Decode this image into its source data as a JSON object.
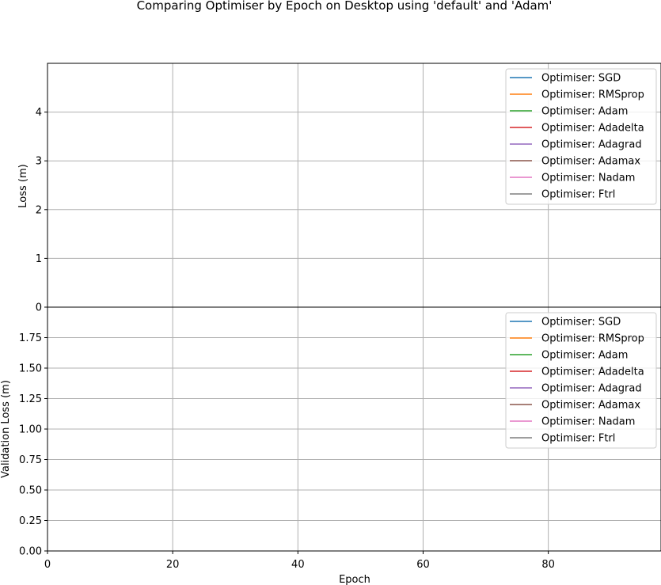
{
  "chart_data": {
    "type": "line",
    "title": "Comparing Optimiser by Epoch on Desktop using 'default' and 'Adam'",
    "xlabel": "Epoch",
    "xlim": [
      0,
      98
    ],
    "xticks": [
      0,
      20,
      40,
      60,
      80
    ],
    "grid": true,
    "legend_position": "top-right",
    "series_names": [
      "Optimiser: SGD",
      "Optimiser: RMSprop",
      "Optimiser: Adam",
      "Optimiser: Adadelta",
      "Optimiser: Adagrad",
      "Optimiser: Adamax",
      "Optimiser: Nadam",
      "Optimiser: Ftrl"
    ],
    "series_colors": [
      "#1f77b4",
      "#ff7f0e",
      "#2ca02c",
      "#d62728",
      "#9467bd",
      "#8c564b",
      "#e377c2",
      "#7f7f7f"
    ],
    "panels": [
      {
        "ylabel": "Loss (m)",
        "ylim": [
          0,
          5
        ],
        "yticks": [
          "0",
          "1",
          "2",
          "3",
          "4"
        ],
        "ytick_values": [
          0,
          1,
          2,
          3,
          4
        ],
        "series": [
          {
            "name": "Optimiser: SGD",
            "values": []
          },
          {
            "name": "Optimiser: RMSprop",
            "values": []
          },
          {
            "name": "Optimiser: Adam",
            "values": []
          },
          {
            "name": "Optimiser: Adadelta",
            "values": []
          },
          {
            "name": "Optimiser: Adagrad",
            "values": []
          },
          {
            "name": "Optimiser: Adamax",
            "values": []
          },
          {
            "name": "Optimiser: Nadam",
            "values": []
          },
          {
            "name": "Optimiser: Ftrl",
            "values": []
          }
        ]
      },
      {
        "ylabel": "Validation Loss (m)",
        "ylim": [
          0,
          2
        ],
        "yticks": [
          "0.00",
          "0.25",
          "0.50",
          "0.75",
          "1.00",
          "1.25",
          "1.50",
          "1.75"
        ],
        "ytick_values": [
          0,
          0.25,
          0.5,
          0.75,
          1.0,
          1.25,
          1.5,
          1.75
        ],
        "series": [
          {
            "name": "Optimiser: SGD",
            "values": []
          },
          {
            "name": "Optimiser: RMSprop",
            "values": []
          },
          {
            "name": "Optimiser: Adam",
            "values": []
          },
          {
            "name": "Optimiser: Adadelta",
            "values": []
          },
          {
            "name": "Optimiser: Adagrad",
            "values": []
          },
          {
            "name": "Optimiser: Adamax",
            "values": []
          },
          {
            "name": "Optimiser: Nadam",
            "values": []
          },
          {
            "name": "Optimiser: Ftrl",
            "values": []
          }
        ]
      }
    ]
  }
}
